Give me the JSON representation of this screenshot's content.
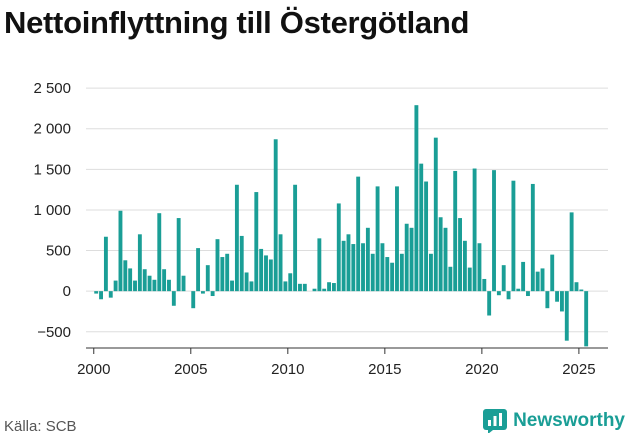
{
  "title": "Nettoinflyttning till Östergötland",
  "source": "Källa: SCB",
  "brand": {
    "name": "Newsworthy",
    "icon": "newsworthy-logo-icon"
  },
  "colors": {
    "bar": "#1a9e96",
    "grid": "#dddddd",
    "axis": "#333333",
    "brand": "#1a9e96"
  },
  "chart_data": {
    "type": "bar",
    "title": "Nettoinflyttning till Östergötland",
    "xlabel": "",
    "ylabel": "",
    "ylim": [
      -700,
      2600
    ],
    "xlim": [
      1999.6,
      2026.5
    ],
    "grid": "horizontal",
    "yticks": [
      -500,
      0,
      500,
      1000,
      1500,
      2000,
      2500
    ],
    "ytick_labels": [
      "−500",
      "0",
      "500",
      "1 000",
      "1 500",
      "2 000",
      "2 500"
    ],
    "xticks": [
      2000,
      2005,
      2010,
      2015,
      2020,
      2025
    ],
    "xtick_labels": [
      "2000",
      "2005",
      "2010",
      "2015",
      "2020",
      "2025"
    ],
    "bar_width_years": 0.2,
    "series": [
      {
        "x": [
          2000.0,
          2000.25,
          2000.5,
          2000.75,
          2001.0,
          2001.25,
          2001.5,
          2001.75,
          2002.0,
          2002.25,
          2002.5,
          2002.75,
          2003.0,
          2003.25,
          2003.5,
          2003.75,
          2004.0,
          2004.25,
          2004.5,
          2004.75,
          2005.0,
          2005.25,
          2005.5,
          2005.75,
          2006.0,
          2006.25,
          2006.5,
          2006.75,
          2007.0,
          2007.25,
          2007.5,
          2007.75,
          2008.0,
          2008.25,
          2008.5,
          2008.75,
          2009.0,
          2009.25,
          2009.5,
          2009.75,
          2010.0,
          2010.25,
          2010.5,
          2010.75,
          2011.0,
          2011.25,
          2011.5,
          2011.75,
          2012.0,
          2012.25,
          2012.5,
          2012.75,
          2013.0,
          2013.25,
          2013.5,
          2013.75,
          2014.0,
          2014.25,
          2014.5,
          2014.75,
          2015.0,
          2015.25,
          2015.5,
          2015.75,
          2016.0,
          2016.25,
          2016.5,
          2016.75,
          2017.0,
          2017.25,
          2017.5,
          2017.75,
          2018.0,
          2018.25,
          2018.5,
          2018.75,
          2019.0,
          2019.25,
          2019.5,
          2019.75,
          2020.0,
          2020.25,
          2020.5,
          2020.75,
          2021.0,
          2021.25,
          2021.5,
          2021.75,
          2022.0,
          2022.25,
          2022.5,
          2022.75,
          2023.0,
          2023.25,
          2023.5,
          2023.75,
          2024.0,
          2024.25,
          2024.5,
          2024.75,
          2025.0,
          2025.25
        ],
        "values": [
          -30,
          -100,
          670,
          -80,
          130,
          990,
          380,
          280,
          130,
          700,
          270,
          190,
          140,
          960,
          270,
          140,
          -180,
          900,
          190,
          0,
          -210,
          530,
          -30,
          320,
          -60,
          640,
          420,
          460,
          130,
          1310,
          680,
          230,
          120,
          1220,
          520,
          440,
          390,
          1870,
          700,
          120,
          220,
          1310,
          90,
          90,
          0,
          30,
          650,
          30,
          110,
          100,
          1080,
          620,
          700,
          580,
          1410,
          590,
          780,
          460,
          1290,
          590,
          420,
          350,
          1290,
          460,
          830,
          780,
          2290,
          1570,
          1350,
          460,
          1890,
          910,
          780,
          300,
          1480,
          900,
          620,
          290,
          1510,
          590,
          150,
          -300,
          1490,
          -50,
          320,
          -100,
          1360,
          30,
          360,
          -60,
          1320,
          240,
          280,
          -210,
          450,
          -130,
          -250,
          -610,
          970,
          110,
          20,
          -680
        ]
      }
    ]
  }
}
